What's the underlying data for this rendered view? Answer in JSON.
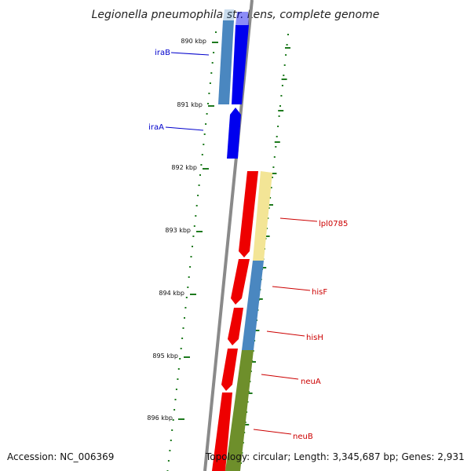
{
  "title": "Legionella pneumophila str. Lens, complete genome",
  "accession": "Accession: NC_006369",
  "topology": "Topology: circular; Length: 3,345,687 bp; Genes: 2,931",
  "colors": {
    "backbone": "#8a8a8a",
    "tick": "#1e7a1e",
    "forward_cds": "#0000ee",
    "reverse_cds": "#ee0000",
    "label_forward": "#0000cc",
    "label_reverse": "#cc0000",
    "cog_blue": "#4a87c0",
    "cog_yellow": "#f3e596",
    "cog_olive": "#6e8f2b"
  },
  "kbp_labels": [
    "890 kbp",
    "891 kbp",
    "892 kbp",
    "893 kbp",
    "894 kbp",
    "895 kbp",
    "896 kbp"
  ],
  "genes": [
    {
      "name": "iraB",
      "strand": "forward",
      "cog": "cog_blue"
    },
    {
      "name": "iraA",
      "strand": "forward",
      "cog": null
    },
    {
      "name": "lpl0785",
      "strand": "reverse",
      "cog": "cog_yellow"
    },
    {
      "name": "hisF",
      "strand": "reverse",
      "cog": "cog_blue"
    },
    {
      "name": "hisH",
      "strand": "reverse",
      "cog": "cog_blue"
    },
    {
      "name": "neuA",
      "strand": "reverse",
      "cog": "cog_olive"
    },
    {
      "name": "neuB",
      "strand": "reverse",
      "cog": "cog_olive"
    }
  ]
}
